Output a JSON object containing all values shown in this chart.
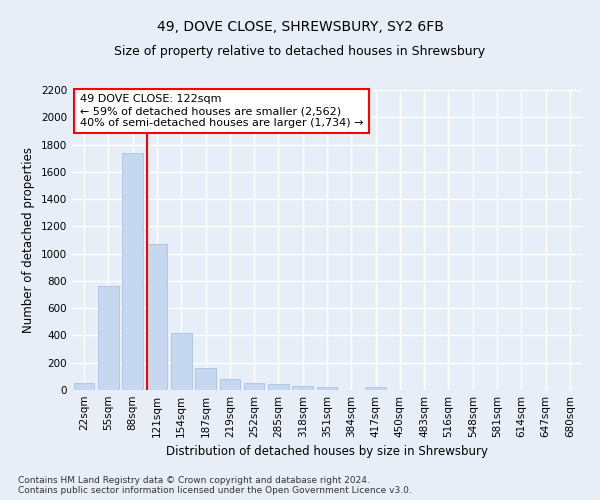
{
  "title": "49, DOVE CLOSE, SHREWSBURY, SY2 6FB",
  "subtitle": "Size of property relative to detached houses in Shrewsbury",
  "xlabel": "Distribution of detached houses by size in Shrewsbury",
  "ylabel": "Number of detached properties",
  "footer_line1": "Contains HM Land Registry data © Crown copyright and database right 2024.",
  "footer_line2": "Contains public sector information licensed under the Open Government Licence v3.0.",
  "categories": [
    "22sqm",
    "55sqm",
    "88sqm",
    "121sqm",
    "154sqm",
    "187sqm",
    "219sqm",
    "252sqm",
    "285sqm",
    "318sqm",
    "351sqm",
    "384sqm",
    "417sqm",
    "450sqm",
    "483sqm",
    "516sqm",
    "548sqm",
    "581sqm",
    "614sqm",
    "647sqm",
    "680sqm"
  ],
  "values": [
    55,
    760,
    1740,
    1070,
    415,
    160,
    80,
    50,
    45,
    30,
    25,
    0,
    20,
    0,
    0,
    0,
    0,
    0,
    0,
    0,
    0
  ],
  "bar_color": "#c5d8f0",
  "bar_edge_color": "#a0bedd",
  "annotation_text_line1": "49 DOVE CLOSE: 122sqm",
  "annotation_text_line2": "← 59% of detached houses are smaller (2,562)",
  "annotation_text_line3": "40% of semi-detached houses are larger (1,734) →",
  "annotation_box_color": "white",
  "annotation_box_edge_color": "red",
  "vline_color": "red",
  "ylim": [
    0,
    2200
  ],
  "yticks": [
    0,
    200,
    400,
    600,
    800,
    1000,
    1200,
    1400,
    1600,
    1800,
    2000,
    2200
  ],
  "bg_color": "#e8eef8",
  "plot_bg_color": "#e8eef8",
  "grid_color": "white",
  "title_fontsize": 10,
  "subtitle_fontsize": 9,
  "axis_label_fontsize": 8.5,
  "tick_fontsize": 7.5,
  "annotation_fontsize": 8,
  "footer_fontsize": 6.5
}
